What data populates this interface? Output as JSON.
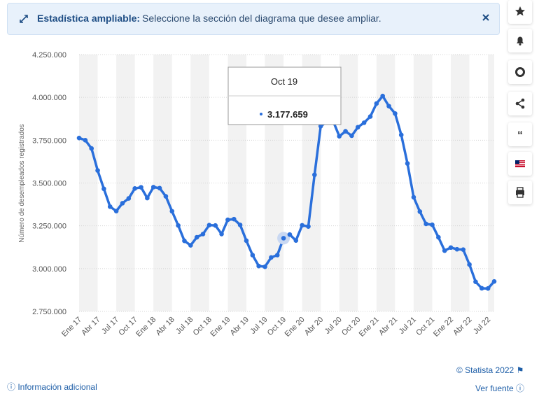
{
  "banner": {
    "lead": "Estadística ampliable:",
    "message": "Seleccione la sección del diagrama que desee ampliar."
  },
  "chart_data": {
    "type": "line",
    "y_label": "Número de desempleados registrados",
    "categories": [
      "Ene 17",
      null,
      null,
      "Abr 17",
      null,
      null,
      "Jul 17",
      null,
      null,
      "Oct 17",
      null,
      null,
      "Ene 18",
      null,
      null,
      "Abr 18",
      null,
      null,
      "Jul 18",
      null,
      null,
      "Oct 18",
      null,
      null,
      "Ene 19",
      null,
      null,
      "Abr 19",
      null,
      null,
      "Jul 19",
      null,
      null,
      "Oct 19",
      null,
      null,
      "Ene 20",
      null,
      null,
      "Abr 20",
      null,
      null,
      "Jul 20",
      null,
      null,
      "Oct 20",
      null,
      null,
      "Ene 21",
      null,
      null,
      "Abr 21",
      null,
      null,
      "Jul 21",
      null,
      null,
      "Oct 21",
      null,
      null,
      "Ene 22",
      null,
      null,
      "Abr 22",
      null,
      null,
      "Jul 22",
      null
    ],
    "series": [
      {
        "name": "Desempleados registrados",
        "color": "#2a6fdb",
        "values": [
          3763000,
          3750000,
          3702000,
          3573000,
          3466000,
          3362000,
          3336000,
          3382000,
          3410000,
          3468000,
          3475000,
          3412000,
          3476000,
          3470000,
          3422000,
          3335000,
          3252000,
          3162000,
          3136000,
          3183000,
          3202000,
          3254000,
          3252000,
          3202000,
          3285000,
          3289000,
          3255000,
          3163000,
          3079000,
          3015000,
          3011000,
          3065000,
          3079000,
          3177659,
          3199000,
          3164000,
          3253000,
          3246000,
          3548000,
          3832000,
          3858000,
          3862000,
          3773000,
          3802000,
          3776000,
          3826000,
          3852000,
          3888000,
          3964000,
          4008000,
          3949000,
          3906000,
          3781000,
          3614000,
          3417000,
          3333000,
          3261000,
          3256000,
          3183000,
          3105000,
          3123000,
          3113000,
          3111000,
          3024000,
          2923000,
          2885000,
          2884000,
          2925000
        ]
      }
    ],
    "ylim": [
      2750000,
      4250000
    ],
    "yticks": [
      {
        "value": 2750000,
        "label": "2.750.000"
      },
      {
        "value": 3000000,
        "label": "3.000.000"
      },
      {
        "value": 3250000,
        "label": "3.250.000"
      },
      {
        "value": 3500000,
        "label": "3.500.000"
      },
      {
        "value": 3750000,
        "label": "3.750.000"
      },
      {
        "value": 4000000,
        "label": "4.000.000"
      },
      {
        "value": 4250000,
        "label": "4.250.000"
      }
    ],
    "grid": true,
    "tooltip": {
      "title": "Oct 19",
      "value": "3.177.659"
    }
  },
  "footer": {
    "copyright": "© Statista 2022",
    "info": "Información adicional",
    "source": "Ver fuente"
  }
}
